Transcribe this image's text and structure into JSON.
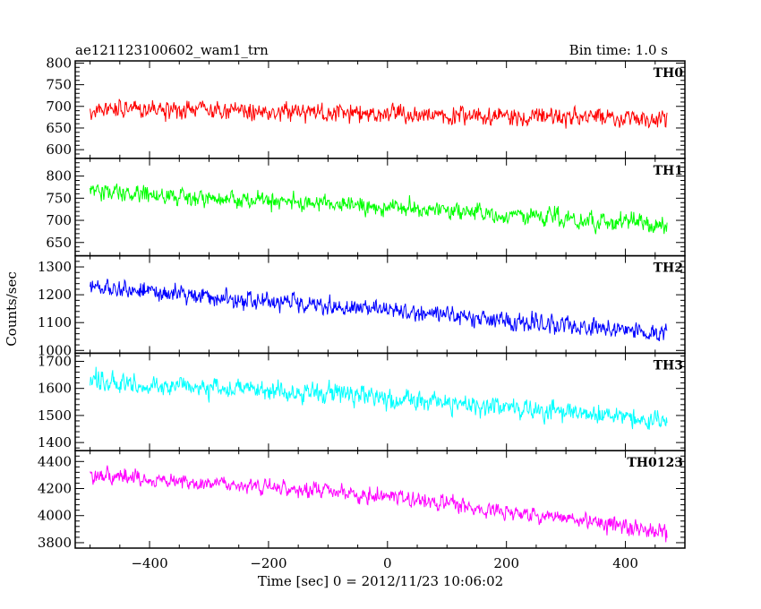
{
  "header": {
    "title": "ae121123100602_wam1_trn",
    "bin_time": "Bin time: 1.0 s"
  },
  "chart_data": {
    "type": "line",
    "title": "ae121123100602_wam1_trn",
    "subtitle": "Bin time: 1.0 s",
    "xlabel": "Time [sec] 0 = 2012/11/23 10:06:02",
    "ylabel": "Counts/sec",
    "xlim": [
      -525,
      500
    ],
    "x_ticks": [
      -400,
      -200,
      0,
      200,
      400
    ],
    "x_range": [
      -500,
      470
    ],
    "x_step": 1,
    "grid": false,
    "panels": [
      {
        "name": "TH0",
        "color": "#ff0000",
        "ylim": [
          580,
          805
        ],
        "y_ticks": [
          600,
          650,
          700,
          750,
          800
        ],
        "trend": [
          [
            -500,
            695
          ],
          [
            470,
            670
          ]
        ],
        "noise_amplitude": 45
      },
      {
        "name": "TH1",
        "color": "#00ff00",
        "ylim": [
          620,
          840
        ],
        "y_ticks": [
          650,
          700,
          750,
          800
        ],
        "trend": [
          [
            -500,
            765
          ],
          [
            0,
            730
          ],
          [
            470,
            690
          ]
        ],
        "noise_amplitude": 45
      },
      {
        "name": "TH2",
        "color": "#0000ff",
        "ylim": [
          990,
          1340
        ],
        "y_ticks": [
          1000,
          1100,
          1200,
          1300
        ],
        "trend": [
          [
            -500,
            1225
          ],
          [
            0,
            1145
          ],
          [
            470,
            1060
          ]
        ],
        "noise_amplitude": 70
      },
      {
        "name": "TH3",
        "color": "#00ffff",
        "ylim": [
          1370,
          1730
        ],
        "y_ticks": [
          1400,
          1500,
          1600,
          1700
        ],
        "trend": [
          [
            -500,
            1630
          ],
          [
            0,
            1565
          ],
          [
            470,
            1480
          ]
        ],
        "noise_amplitude": 80
      },
      {
        "name": "TH0123",
        "color": "#ff00ff",
        "ylim": [
          3760,
          4480
        ],
        "y_ticks": [
          3800,
          4000,
          4200,
          4400
        ],
        "trend": [
          [
            -500,
            4300
          ],
          [
            0,
            4140
          ],
          [
            470,
            3880
          ]
        ],
        "noise_amplitude": 130
      }
    ]
  }
}
